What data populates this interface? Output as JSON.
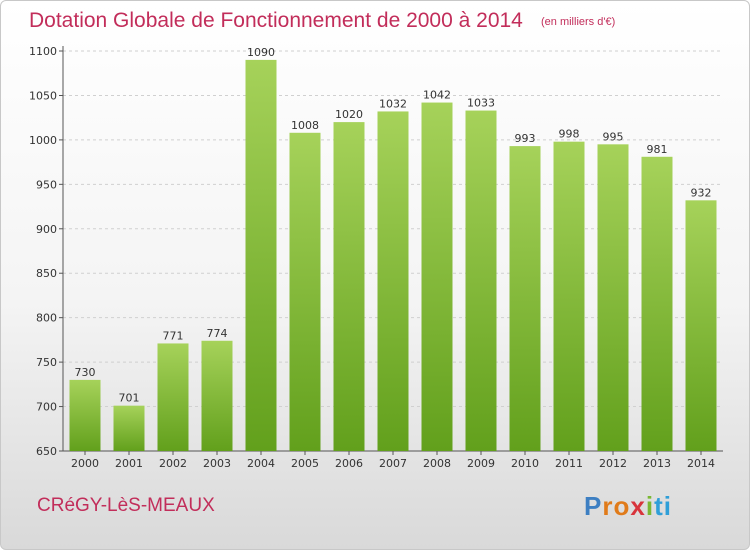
{
  "title": "Dotation Globale de Fonctionnement de 2000 à 2014",
  "unit_note": "(en milliers d'€)",
  "commune": "CRéGY-LèS-MEAUX",
  "logo": {
    "text": "Proxiti",
    "letters": [
      "P",
      "r",
      "o",
      "x",
      "i",
      "ti"
    ]
  },
  "colors": {
    "title": "#c22d5a",
    "bar_top": "#a6d25a",
    "bar_bottom": "#62a01c"
  },
  "chart_data": {
    "type": "bar",
    "title": "Dotation Globale de Fonctionnement de 2000 à 2014",
    "subtitle": "(en milliers d'€)",
    "xlabel": "",
    "ylabel": "",
    "categories": [
      "2000",
      "2001",
      "2002",
      "2003",
      "2004",
      "2005",
      "2006",
      "2007",
      "2008",
      "2009",
      "2010",
      "2011",
      "2012",
      "2013",
      "2014"
    ],
    "values": [
      730,
      701,
      771,
      774,
      1090,
      1008,
      1020,
      1032,
      1042,
      1033,
      993,
      998,
      995,
      981,
      932
    ],
    "ylim": [
      650,
      1100
    ],
    "yticks": [
      650,
      700,
      750,
      800,
      850,
      900,
      950,
      1000,
      1050,
      1100
    ],
    "grid": true,
    "legend": "none"
  }
}
